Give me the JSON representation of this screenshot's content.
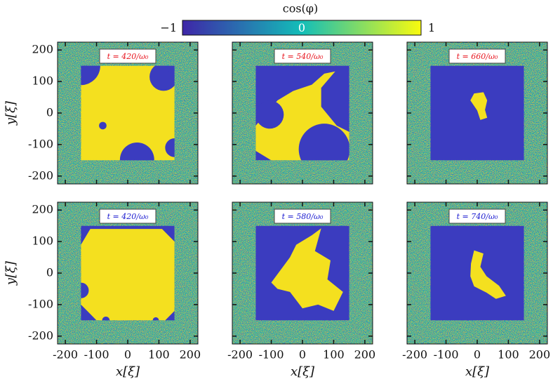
{
  "chart_data": {
    "type": "heatmap-grid",
    "colorbar": {
      "label": "cos(φ)",
      "clim": [
        -1,
        1
      ],
      "ticks": [
        {
          "value": -1,
          "label": "−1"
        },
        0,
        1
      ],
      "colors": [
        "#3e26a8",
        "#13beb8",
        "#f9fb0e"
      ]
    },
    "xlabel": "x[ξ]",
    "ylabel": "y[ξ]",
    "xlim": [
      -225,
      225
    ],
    "ylim": [
      -225,
      225
    ],
    "xticks": [
      -200,
      -100,
      0,
      100,
      200
    ],
    "yticks": [
      200,
      100,
      0,
      -100,
      -200
    ],
    "panels": [
      {
        "title": "t = 420/ω₀",
        "title_color": "#e8141e"
      },
      {
        "title": "t = 540/ω₀",
        "title_color": "#e8141e"
      },
      {
        "title": "t = 660/ω₀",
        "title_color": "#e8141e"
      },
      {
        "title": "t = 420/ω₀",
        "title_color": "#1a1ad0"
      },
      {
        "title": "t = 580/ω₀",
        "title_color": "#1a1ad0"
      },
      {
        "title": "t = 740/ω₀",
        "title_color": "#1a1ad0"
      }
    ]
  }
}
